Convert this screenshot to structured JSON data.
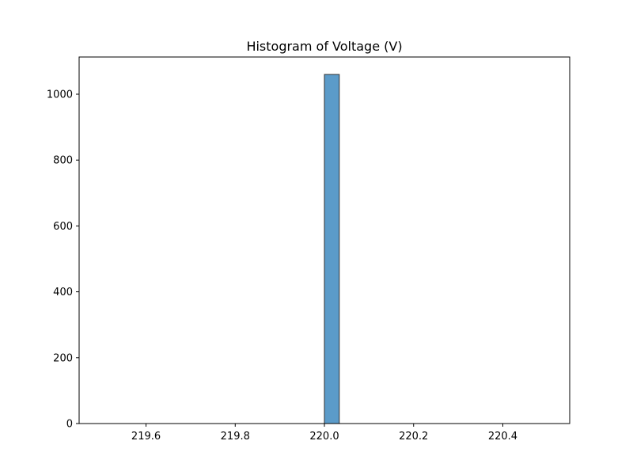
{
  "chart_data": {
    "type": "bar",
    "title": "Histogram of Voltage (V)",
    "xlabel": "",
    "ylabel": "",
    "xlim": [
      219.45,
      220.55
    ],
    "ylim": [
      0,
      1113
    ],
    "bins": {
      "start": 219.5,
      "width": 0.0333333,
      "counts": [
        0,
        0,
        0,
        0,
        0,
        0,
        0,
        0,
        0,
        0,
        0,
        0,
        0,
        0,
        0,
        1060,
        0,
        0,
        0,
        0,
        0,
        0,
        0,
        0,
        0,
        0,
        0,
        0,
        0,
        0
      ]
    },
    "x_ticks": [
      {
        "value": 219.6,
        "label": "219.6"
      },
      {
        "value": 219.8,
        "label": "219.8"
      },
      {
        "value": 220.0,
        "label": "220.0"
      },
      {
        "value": 220.2,
        "label": "220.2"
      },
      {
        "value": 220.4,
        "label": "220.4"
      }
    ],
    "y_ticks": [
      {
        "value": 0,
        "label": "0"
      },
      {
        "value": 200,
        "label": "200"
      },
      {
        "value": 400,
        "label": "400"
      },
      {
        "value": 600,
        "label": "600"
      },
      {
        "value": 800,
        "label": "800"
      },
      {
        "value": 1000,
        "label": "1000"
      }
    ],
    "grid": false,
    "colors": {
      "bar_fill": "#5b9bc9",
      "bar_edge": "#333333",
      "axis": "#000000"
    }
  }
}
